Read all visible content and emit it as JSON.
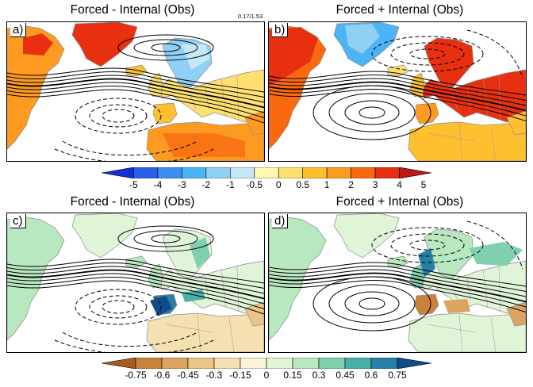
{
  "panels": [
    {
      "label": "a)",
      "title": "Forced - Internal (Obs)",
      "annotation": "0.17/1.53"
    },
    {
      "label": "b)",
      "title": "Forced + Internal (Obs)",
      "annotation": ""
    },
    {
      "label": "c)",
      "title": "Forced - Internal (Obs)",
      "annotation": ""
    },
    {
      "label": "d)",
      "title": "Forced + Internal (Obs)",
      "annotation": ""
    }
  ],
  "colorbar_temp": {
    "ticks": [
      "-5",
      "-4",
      "-3",
      "-2",
      "-1",
      "-0.5",
      "0",
      "0.5",
      "1",
      "2",
      "3",
      "4",
      "5"
    ],
    "colors": [
      "#1030d8",
      "#2a60e8",
      "#3c8ef0",
      "#4cb4f4",
      "#8fd0f4",
      "#c6e8f6",
      "#fff8b0",
      "#ffe070",
      "#ffc030",
      "#ff9a20",
      "#f96a10",
      "#e83010",
      "#c01818"
    ]
  },
  "colorbar_precip": {
    "ticks": [
      "-0.75",
      "-0.6",
      "-0.45",
      "-0.3",
      "-0.15",
      "0",
      "0.15",
      "0.3",
      "0.45",
      "0.6",
      "0.75"
    ],
    "colors": [
      "#a85a20",
      "#c8823a",
      "#dca460",
      "#ecc688",
      "#f4e0b0",
      "#fbf4d8",
      "#e0f4d8",
      "#b8e8c0",
      "#80d0b0",
      "#48b0a8",
      "#2880a8",
      "#104c88"
    ]
  }
}
